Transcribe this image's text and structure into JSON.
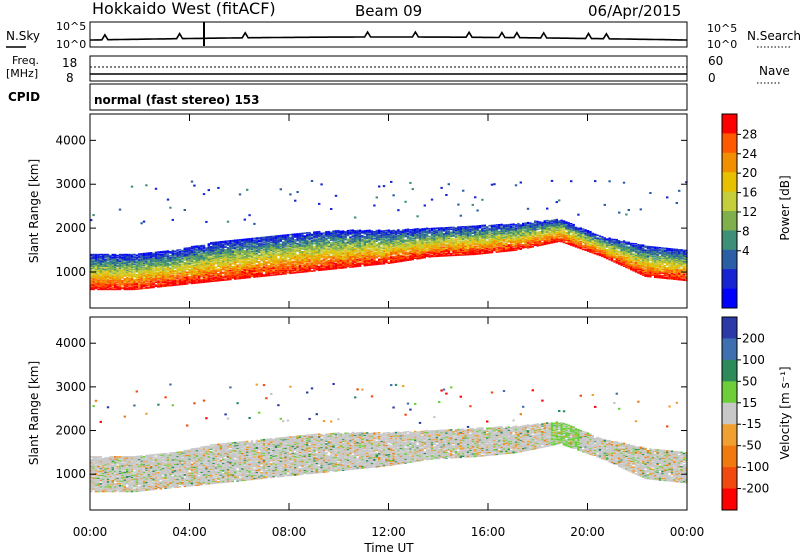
{
  "header": {
    "radar": "Hokkaido West (fitACF)",
    "beam": "Beam 09",
    "date": "06/Apr/2015"
  },
  "top_panels": {
    "nsky_label": "N.Sky",
    "nsky_ticks": [
      "10^5",
      "10^0"
    ],
    "nsearch_label": "N.Search",
    "nsearch_ticks": [
      "10^5",
      "10^0"
    ],
    "freq_label": [
      "Freq.",
      "[MHz]"
    ],
    "freq_ticks": [
      "18",
      "8"
    ],
    "nave_label": "Nave",
    "nave_ticks": [
      "60",
      "0"
    ],
    "cpid_label": "CPID",
    "cpid_text": "normal (fast stereo) 153"
  },
  "chart_data": [
    {
      "type": "heatmap",
      "name": "power",
      "ylabel": "Slant Range [km]",
      "ylim": [
        180,
        4600
      ],
      "yticks": [
        1000,
        2000,
        3000,
        4000
      ],
      "xlim": [
        0,
        24
      ],
      "colorbar": {
        "label": "Power [dB]",
        "ticks": [
          "28",
          "24",
          "20",
          "16",
          "12",
          "8",
          "4"
        ],
        "colors": [
          "#ff0000",
          "#ff5a00",
          "#f09000",
          "#e7c000",
          "#c6ce3c",
          "#7fb04b",
          "#3e8f77",
          "#2a5fa5",
          "#1624d2",
          "#0000ff"
        ]
      },
      "bands": [
        {
          "range_lo": [
            600,
            600,
            700,
            800,
            900,
            1000,
            1100,
            1200,
            1350,
            1400,
            1500,
            1700,
            1350,
            900,
            800
          ],
          "range_hi": [
            1400,
            1400,
            1500,
            1700,
            1800,
            1900,
            1950,
            1950,
            2000,
            2050,
            2100,
            2200,
            1800,
            1600,
            1500
          ]
        }
      ]
    },
    {
      "type": "heatmap",
      "name": "velocity",
      "ylabel": "Slant Range [km]",
      "ylim": [
        180,
        4600
      ],
      "yticks": [
        1000,
        2000,
        3000,
        4000
      ],
      "xlim": [
        0,
        24
      ],
      "xticks": [
        "00:00",
        "04:00",
        "08:00",
        "12:00",
        "16:00",
        "20:00",
        "00:00"
      ],
      "xlabel": "Time UT",
      "colorbar": {
        "label": "Velocity [m s⁻¹]",
        "ticks": [
          "200",
          "100",
          "50",
          "15",
          "-15",
          "-50",
          "-100",
          "-200"
        ],
        "colors": [
          "#2b3aa6",
          "#3e6fb0",
          "#2d8b5a",
          "#6ccf3a",
          "#c8c8c8",
          "#f0a030",
          "#f07a10",
          "#f04a10",
          "#ff0000"
        ]
      }
    }
  ]
}
